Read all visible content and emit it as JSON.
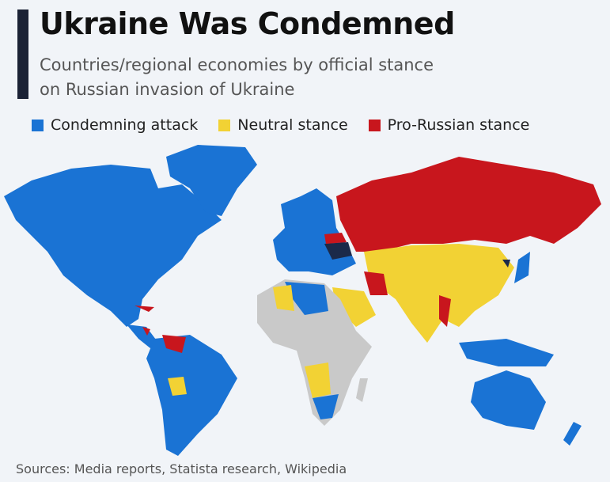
{
  "header": {
    "title": "Ukraine Was Condemned",
    "subtitle_lines": [
      "Countries/regional economies by official stance",
      "on Russian invasion of Ukraine"
    ]
  },
  "legend": {
    "items": [
      {
        "label": "Condemning attack",
        "color": "#1a73d4"
      },
      {
        "label": "Neutral stance",
        "color": "#f2d234"
      },
      {
        "label": "Pro-Russian stance",
        "color": "#c8161d"
      }
    ]
  },
  "footer": {
    "source": "Sources: Media reports, Statista research, Wikipedia"
  }
}
